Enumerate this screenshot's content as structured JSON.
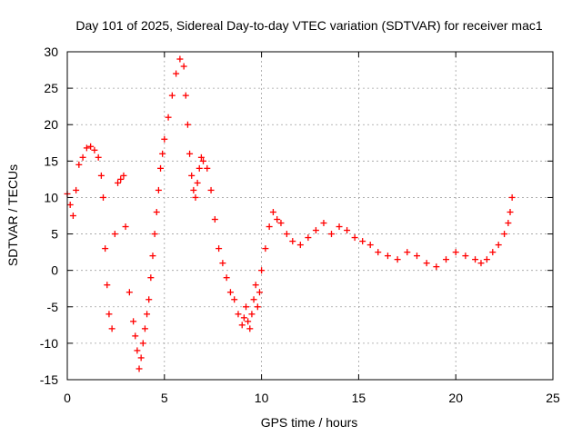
{
  "chart_data": {
    "type": "scatter",
    "title": "Day 101 of 2025, Sidereal Day-to-day VTEC variation (SDTVAR) for receiver mac1",
    "xlabel": "GPS time / hours",
    "ylabel": "SDTVAR / TECUs",
    "xlim": [
      0,
      25
    ],
    "ylim": [
      -15,
      30
    ],
    "xticks": [
      0,
      5,
      10,
      15,
      20,
      25
    ],
    "yticks": [
      -15,
      -10,
      -5,
      0,
      5,
      10,
      15,
      20,
      25,
      30
    ],
    "grid": true,
    "marker": "+",
    "color": "#ff0000",
    "series": [
      {
        "name": "SDTVAR",
        "x": [
          0.0,
          0.15,
          0.3,
          0.45,
          0.6,
          0.8,
          1.0,
          1.2,
          1.4,
          1.6,
          1.75,
          1.85,
          1.95,
          2.05,
          2.15,
          2.3,
          2.45,
          2.6,
          2.75,
          2.9,
          3.0,
          3.2,
          3.4,
          3.5,
          3.6,
          3.7,
          3.8,
          3.9,
          4.0,
          4.1,
          4.2,
          4.3,
          4.4,
          4.5,
          4.6,
          4.7,
          4.8,
          4.9,
          5.0,
          5.2,
          5.4,
          5.6,
          5.8,
          6.0,
          6.1,
          6.2,
          6.3,
          6.4,
          6.5,
          6.6,
          6.7,
          6.8,
          6.9,
          7.0,
          7.2,
          7.4,
          7.6,
          7.8,
          8.0,
          8.2,
          8.4,
          8.6,
          8.8,
          9.0,
          9.1,
          9.2,
          9.3,
          9.4,
          9.5,
          9.6,
          9.7,
          9.8,
          9.9,
          10.0,
          10.2,
          10.4,
          10.6,
          10.8,
          11.0,
          11.3,
          11.6,
          12.0,
          12.4,
          12.8,
          13.2,
          13.6,
          14.0,
          14.4,
          14.8,
          15.2,
          15.6,
          16.0,
          16.5,
          17.0,
          17.5,
          18.0,
          18.5,
          19.0,
          19.5,
          20.0,
          20.5,
          21.0,
          21.3,
          21.6,
          21.9,
          22.2,
          22.5,
          22.7,
          22.8,
          22.9
        ],
        "values": [
          10.5,
          9.0,
          7.5,
          11.0,
          14.5,
          15.5,
          16.8,
          17.0,
          16.5,
          15.5,
          13.0,
          10.0,
          3.0,
          -2.0,
          -6.0,
          -8.0,
          5.0,
          12.0,
          12.5,
          13.0,
          6.0,
          -3.0,
          -7.0,
          -9.0,
          -11.0,
          -13.5,
          -12.0,
          -10.0,
          -8.0,
          -6.0,
          -4.0,
          -1.0,
          2.0,
          5.0,
          8.0,
          11.0,
          14.0,
          16.0,
          18.0,
          21.0,
          24.0,
          27.0,
          29.0,
          28.0,
          24.0,
          20.0,
          16.0,
          13.0,
          11.0,
          10.0,
          12.0,
          14.0,
          15.5,
          15.0,
          14.0,
          11.0,
          7.0,
          3.0,
          1.0,
          -1.0,
          -3.0,
          -4.0,
          -6.0,
          -7.5,
          -6.5,
          -5.0,
          -7.0,
          -8.0,
          -6.0,
          -4.0,
          -2.0,
          -5.0,
          -3.0,
          0.0,
          3.0,
          6.0,
          8.0,
          7.0,
          6.5,
          5.0,
          4.0,
          3.5,
          4.5,
          5.5,
          6.5,
          5.0,
          6.0,
          5.5,
          4.5,
          4.0,
          3.5,
          2.5,
          2.0,
          1.5,
          2.5,
          2.0,
          1.0,
          0.5,
          1.5,
          2.5,
          2.0,
          1.5,
          1.0,
          1.5,
          2.5,
          3.5,
          5.0,
          6.5,
          8.0,
          10.0
        ]
      }
    ]
  }
}
